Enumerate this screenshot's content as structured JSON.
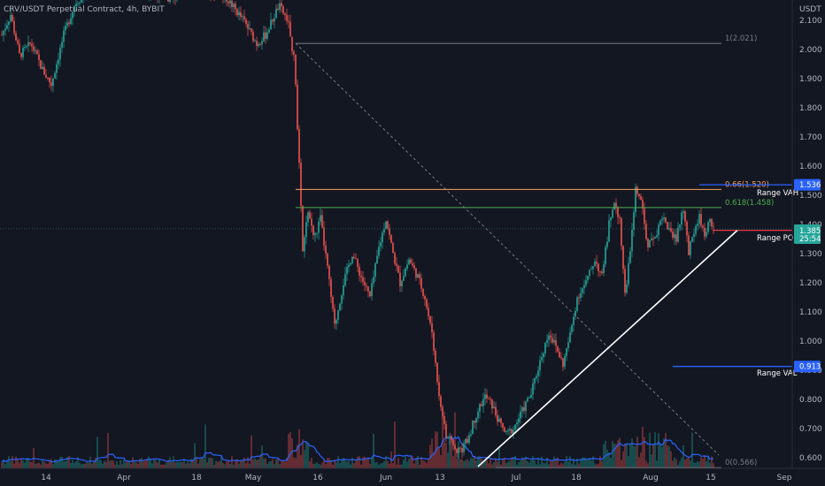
{
  "chart_data": {
    "type": "candlestick",
    "title": "CRV/USDT Perpetual Contract, 4h, BYBIT",
    "currency": "USDT",
    "y_ticks": [
      0.6,
      0.7,
      0.8,
      0.9,
      1.0,
      1.1,
      1.2,
      1.3,
      1.4,
      1.5,
      1.6,
      1.7,
      1.8,
      1.9,
      2.0,
      2.1
    ],
    "y_tick_labels": [
      "0.600",
      "0.700",
      "0.800",
      "0.900",
      "1.000",
      "1.100",
      "1.200",
      "1.300",
      "1.400",
      "1.500",
      "1.600",
      "1.700",
      "1.800",
      "1.900",
      "2.000",
      "2.100"
    ],
    "ylim": [
      0.58,
      2.17
    ],
    "x_ticks": [
      "14",
      "Apr",
      "18",
      "May",
      "16",
      "Jun",
      "13",
      "Jul",
      "18",
      "Aug",
      "15",
      "Sep"
    ],
    "fib_levels": [
      {
        "label": "1(2.021)",
        "value": 2.021,
        "color": "#787b86"
      },
      {
        "label": "0.66(1.520)",
        "value": 1.52,
        "color": "#f5a25d"
      },
      {
        "label": "0.618(1.458)",
        "value": 1.458,
        "color": "#4caf50"
      },
      {
        "label": "0(0.566)",
        "value": 0.566,
        "color": "#787b86"
      }
    ],
    "range_levels": [
      {
        "label": "Range VAH",
        "value": 1.536,
        "tag": "1.536",
        "color": "#2962ff"
      },
      {
        "label": "Range POC",
        "value": 1.38,
        "tag": "1.380",
        "color": "#f23645"
      },
      {
        "label": "Range VAL",
        "value": 0.913,
        "tag": "0.913",
        "color": "#2962ff"
      }
    ],
    "last_price": {
      "value": 1.385,
      "label": "1.385",
      "countdown": "25:54",
      "color": "#26a69a"
    },
    "trendline": {
      "from": {
        "x": "Jun 20",
        "y": 0.58
      },
      "to": {
        "x": "Aug 17",
        "y": 1.38
      }
    },
    "diagonal": {
      "from": {
        "x": "May 12",
        "y": 2.021
      },
      "to": {
        "x": "Aug 14",
        "y": 0.62
      }
    },
    "colors": {
      "up": "#26a69a",
      "down": "#ef5350",
      "volume_ma": "#2962ff",
      "background": "#131722"
    }
  }
}
